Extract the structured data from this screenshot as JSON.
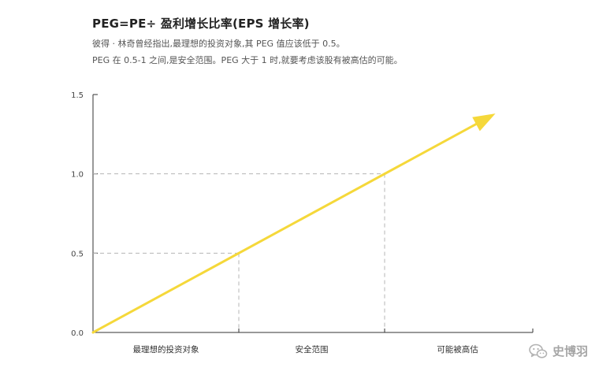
{
  "header": {
    "title": "PEG=PE÷ 盈利增长比率(EPS 增长率)",
    "line1": "彼得 · 林奇曾经指出,最理想的投资对象,其 PEG 值应该低于 0.5。",
    "line2": "PEG 在 0.5-1 之间,是安全范围。PEG 大于 1 时,就要考虑该股有被高估的可能。"
  },
  "watermark": {
    "text": "史博羽",
    "icon": "wechat-icon"
  },
  "chart_data": {
    "type": "line",
    "title": "",
    "xlabel": "",
    "ylabel": "",
    "ylim": [
      0,
      1.5
    ],
    "xlim": [
      0,
      1.5
    ],
    "y_ticks": [
      0.0,
      0.5,
      1.0,
      1.5
    ],
    "y_tick_labels": [
      "0.0",
      "0.5",
      "1.0",
      "1.5"
    ],
    "grid": false,
    "line_color": "#f5d83a",
    "reference_color": "#b5b5b5",
    "series": [
      {
        "x": [
          0,
          1.38
        ],
        "y": [
          0,
          1.38
        ],
        "arrow_end": true
      }
    ],
    "reference_points": [
      {
        "x": 0.5,
        "y": 0.5
      },
      {
        "x": 1.0,
        "y": 1.0
      }
    ],
    "zones": [
      {
        "label": "最理想的投资对象",
        "from": 0,
        "to": 0.5
      },
      {
        "label": "安全范围",
        "from": 0.5,
        "to": 1.0
      },
      {
        "label": "可能被高估",
        "from": 1.0,
        "to": 1.5
      }
    ]
  }
}
